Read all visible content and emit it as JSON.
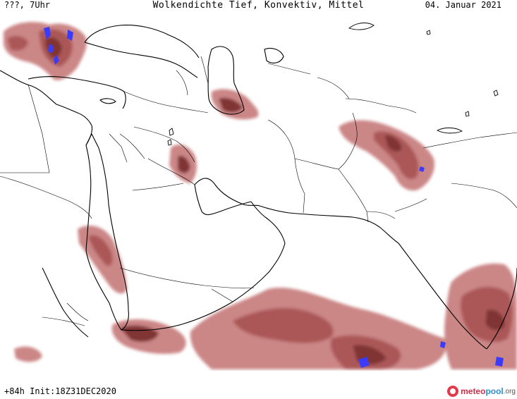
{
  "header": {
    "left": "???, 7Uhr",
    "title": "Wolkendichte  Tief, Konvektiv, Mittel",
    "date": "04. Januar 2021"
  },
  "footer": {
    "forecast_info": "+84h  Init:18Z31DEC2020"
  },
  "logo": {
    "meteo": "meteo",
    "pool": "pool",
    "org": ".org"
  },
  "colors": {
    "cloud_light": "#c98080",
    "cloud_mid": "#a85050",
    "cloud_dark": "#7a2a2a",
    "cloud_dense": "#3b3bff",
    "coastline": "#000000",
    "border": "#000000",
    "background": "#ffffff"
  }
}
